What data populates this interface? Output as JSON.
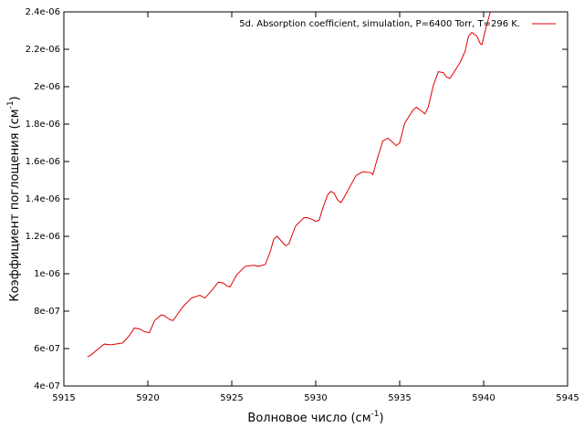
{
  "chart_data": {
    "type": "line",
    "xlabel": [
      "Волновое число (см",
      "-1",
      ")"
    ],
    "ylabel": [
      "Коэффициент поглощения (см",
      "-1",
      ")"
    ],
    "xlim": [
      5915,
      5945
    ],
    "xticks": [
      5915,
      5920,
      5925,
      5930,
      5935,
      5940,
      5945
    ],
    "ylim": [
      4e-07,
      2.4e-06
    ],
    "yticks": [
      {
        "value": 4e-07,
        "label": "4e-07"
      },
      {
        "value": 6e-07,
        "label": "6e-07"
      },
      {
        "value": 8e-07,
        "label": "8e-07"
      },
      {
        "value": 1e-06,
        "label": "1e-06"
      },
      {
        "value": 1.2e-06,
        "label": "1.2e-06"
      },
      {
        "value": 1.4e-06,
        "label": "1.4e-06"
      },
      {
        "value": 1.6e-06,
        "label": "1.6e-06"
      },
      {
        "value": 1.8e-06,
        "label": "1.8e-06"
      },
      {
        "value": 2e-06,
        "label": "2e-06"
      },
      {
        "value": 2.2e-06,
        "label": "2.2e-06"
      },
      {
        "value": 2.4e-06,
        "label": "2.4e-06"
      }
    ],
    "legend": "top-right",
    "x": [
      5916.4,
      5916.6,
      5917.4,
      5917.8,
      5918.5,
      5918.9,
      5919.2,
      5919.5,
      5919.8,
      5920.1,
      5920.4,
      5920.8,
      5921.0,
      5921.3,
      5921.5,
      5922.1,
      5922.6,
      5923.1,
      5923.4,
      5923.8,
      5924.2,
      5924.5,
      5924.7,
      5924.9,
      5925.3,
      5925.8,
      5926.3,
      5926.6,
      5927.0,
      5927.3,
      5927.5,
      5927.7,
      5928.2,
      5928.4,
      5928.8,
      5929.3,
      5929.5,
      5929.8,
      5930.0,
      5930.2,
      5930.4,
      5930.7,
      5930.9,
      5931.1,
      5931.3,
      5931.5,
      5931.7,
      5932.4,
      5932.8,
      5933.3,
      5933.4,
      5933.7,
      5934.0,
      5934.3,
      5934.8,
      5935.0,
      5935.3,
      5935.8,
      5936.0,
      5936.3,
      5936.5,
      5936.7,
      5937.0,
      5937.3,
      5937.6,
      5937.8,
      5938.0,
      5938.6,
      5938.9,
      5939.1,
      5939.3,
      5939.6,
      5939.8,
      5939.9,
      5940.1,
      5940.4
    ],
    "series": [
      {
        "name": "5d. Absorption coefficient, simulation, P=6400 Torr, T=296 K.",
        "color": "#e00000",
        "values": [
          5.56e-07,
          5.65e-07,
          6.24e-07,
          6.2e-07,
          6.3e-07,
          6.7e-07,
          7.1e-07,
          7.05e-07,
          6.9e-07,
          6.85e-07,
          7.5e-07,
          7.8e-07,
          7.75e-07,
          7.55e-07,
          7.5e-07,
          8.25e-07,
          8.7e-07,
          8.85e-07,
          8.7e-07,
          9.1e-07,
          9.55e-07,
          9.5e-07,
          9.35e-07,
          9.3e-07,
          9.95e-07,
          1.04e-06,
          1.045e-06,
          1.04e-06,
          1.05e-06,
          1.12e-06,
          1.185e-06,
          1.2e-06,
          1.15e-06,
          1.16e-06,
          1.255e-06,
          1.3e-06,
          1.3e-06,
          1.29e-06,
          1.28e-06,
          1.285e-06,
          1.345e-06,
          1.42e-06,
          1.44e-06,
          1.43e-06,
          1.395e-06,
          1.38e-06,
          1.41e-06,
          1.525e-06,
          1.545e-06,
          1.54e-06,
          1.53e-06,
          1.625e-06,
          1.71e-06,
          1.725e-06,
          1.685e-06,
          1.7e-06,
          1.805e-06,
          1.875e-06,
          1.89e-06,
          1.87e-06,
          1.855e-06,
          1.89e-06,
          2.005e-06,
          2.08e-06,
          2.075e-06,
          2.05e-06,
          2.045e-06,
          2.13e-06,
          2.19e-06,
          2.27e-06,
          2.29e-06,
          2.27e-06,
          2.23e-06,
          2.225e-06,
          2.3e-06,
          2.4e-06
        ]
      }
    ]
  }
}
